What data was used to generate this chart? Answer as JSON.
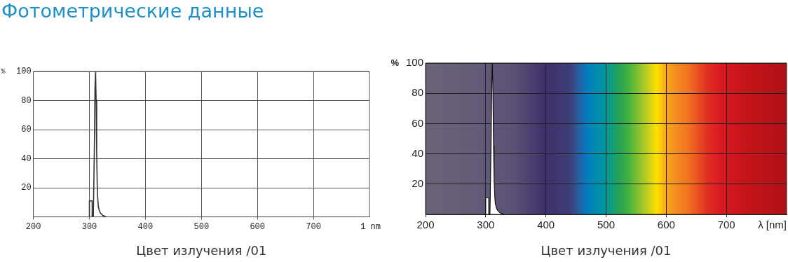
{
  "chart_data": [
    {
      "type": "line",
      "title": "Фотометрические данные",
      "ylabel": "%",
      "xlabel": "1 nm",
      "annotations": [
        "Цвет излучения /01"
      ],
      "xlim": [
        200,
        800
      ],
      "xticks": [
        200,
        300,
        400,
        500,
        600,
        700
      ],
      "ylim": [
        0,
        100
      ],
      "yticks": [
        20,
        40,
        60,
        80,
        100
      ],
      "grid": true,
      "legend": false,
      "marker": "none",
      "series": [
        {
          "color": "#333333",
          "x": [
            300,
            300,
            305,
            305,
            307,
            309,
            310,
            311,
            312,
            313,
            314,
            315,
            316,
            318,
            320,
            324,
            330
          ],
          "values": [
            0,
            11,
            11,
            0,
            0,
            50,
            88,
            100,
            80,
            45,
            22,
            12,
            7,
            4,
            2.5,
            1,
            0
          ]
        }
      ]
    },
    {
      "type": "area",
      "ylabel": "%",
      "xlabel": "λ [nm]",
      "annotations": [
        "Цвет излучения /01"
      ],
      "xlim": [
        200,
        800
      ],
      "xticks": [
        200,
        300,
        400,
        500,
        600,
        700
      ],
      "ylim": [
        0,
        100
      ],
      "yticks": [
        20,
        40,
        60,
        80,
        100
      ],
      "grid": true,
      "legend": false,
      "marker": "none",
      "series": [
        {
          "color": "#ffffff",
          "x": [
            300,
            300,
            305,
            305,
            307,
            309,
            310,
            311,
            312,
            313,
            314,
            315,
            316,
            318,
            320,
            324,
            330
          ],
          "values": [
            0,
            11,
            11,
            0,
            0,
            50,
            88,
            100,
            80,
            45,
            22,
            12,
            7,
            4,
            2.5,
            1,
            0
          ]
        }
      ]
    }
  ]
}
